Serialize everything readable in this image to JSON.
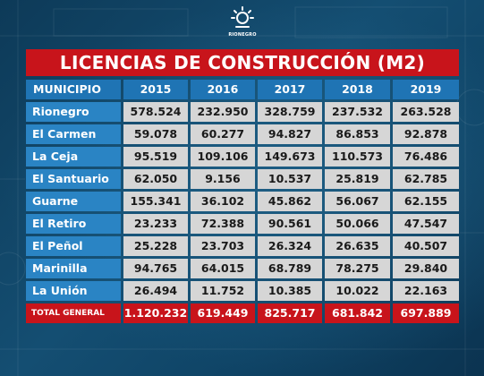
{
  "logo": {
    "text": "RIONEGRO"
  },
  "title": "LICENCIAS DE CONSTRUCCIÓN (M2)",
  "header": {
    "municipio": "MUNICIPIO",
    "years": [
      "2015",
      "2016",
      "2017",
      "2018",
      "2019"
    ]
  },
  "rows": [
    {
      "municipio": "Rionegro",
      "values": [
        "578.524",
        "232.950",
        "328.759",
        "237.532",
        "263.528"
      ]
    },
    {
      "municipio": "El Carmen",
      "values": [
        "59.078",
        "60.277",
        "94.827",
        "86.853",
        "92.878"
      ]
    },
    {
      "municipio": "La Ceja",
      "values": [
        "95.519",
        "109.106",
        "149.673",
        "110.573",
        "76.486"
      ]
    },
    {
      "municipio": "El Santuario",
      "values": [
        "62.050",
        "9.156",
        "10.537",
        "25.819",
        "62.785"
      ]
    },
    {
      "municipio": "Guarne",
      "values": [
        "155.341",
        "36.102",
        "45.862",
        "56.067",
        "62.155"
      ]
    },
    {
      "municipio": "El Retiro",
      "values": [
        "23.233",
        "72.388",
        "90.561",
        "50.066",
        "47.547"
      ]
    },
    {
      "municipio": "El Peñol",
      "values": [
        "25.228",
        "23.703",
        "26.324",
        "26.635",
        "40.507"
      ]
    },
    {
      "municipio": "Marinilla",
      "values": [
        "94.765",
        "64.015",
        "68.789",
        "78.275",
        "29.840"
      ]
    },
    {
      "municipio": "La Unión",
      "values": [
        "26.494",
        "11.752",
        "10.385",
        "10.022",
        "22.163"
      ]
    }
  ],
  "total": {
    "label": "TOTAL GENERAL",
    "values": [
      "1.120.232",
      "619.449",
      "825.717",
      "681.842",
      "697.889"
    ]
  },
  "colors": {
    "red": "#c8141b",
    "blue": "#1f74b4",
    "cell": "#d6d6d6",
    "background": "#0f3e5c"
  }
}
